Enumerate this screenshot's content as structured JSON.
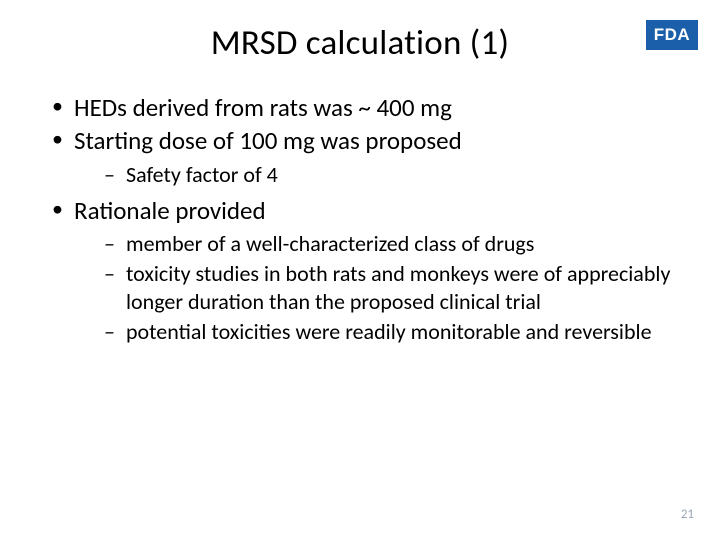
{
  "colors": {
    "background": "#ffffff",
    "text": "#000000",
    "logo_bg": "#1b5faa",
    "logo_text": "#ffffff",
    "pagenum": "#9aa8b8"
  },
  "typography": {
    "title_fontsize": 35,
    "level1_fontsize": 25,
    "level2_fontsize": 22,
    "pagenum_fontsize": 13,
    "font_family": "Calibri"
  },
  "logo": {
    "text": "FDA"
  },
  "title": "MRSD calculation (1)",
  "bullets": [
    {
      "text": "HEDs derived from rats was ~ 400 mg",
      "children": []
    },
    {
      "text": "Starting dose of 100 mg was proposed",
      "children": [
        "Safety factor of 4"
      ]
    },
    {
      "text": "Rationale provided",
      "children": [
        "member of a well-characterized class of drugs",
        "toxicity studies in both rats and monkeys were of appreciably longer duration than the proposed clinical trial",
        "potential toxicities were readily monitorable and reversible"
      ]
    }
  ],
  "page_number": "21"
}
